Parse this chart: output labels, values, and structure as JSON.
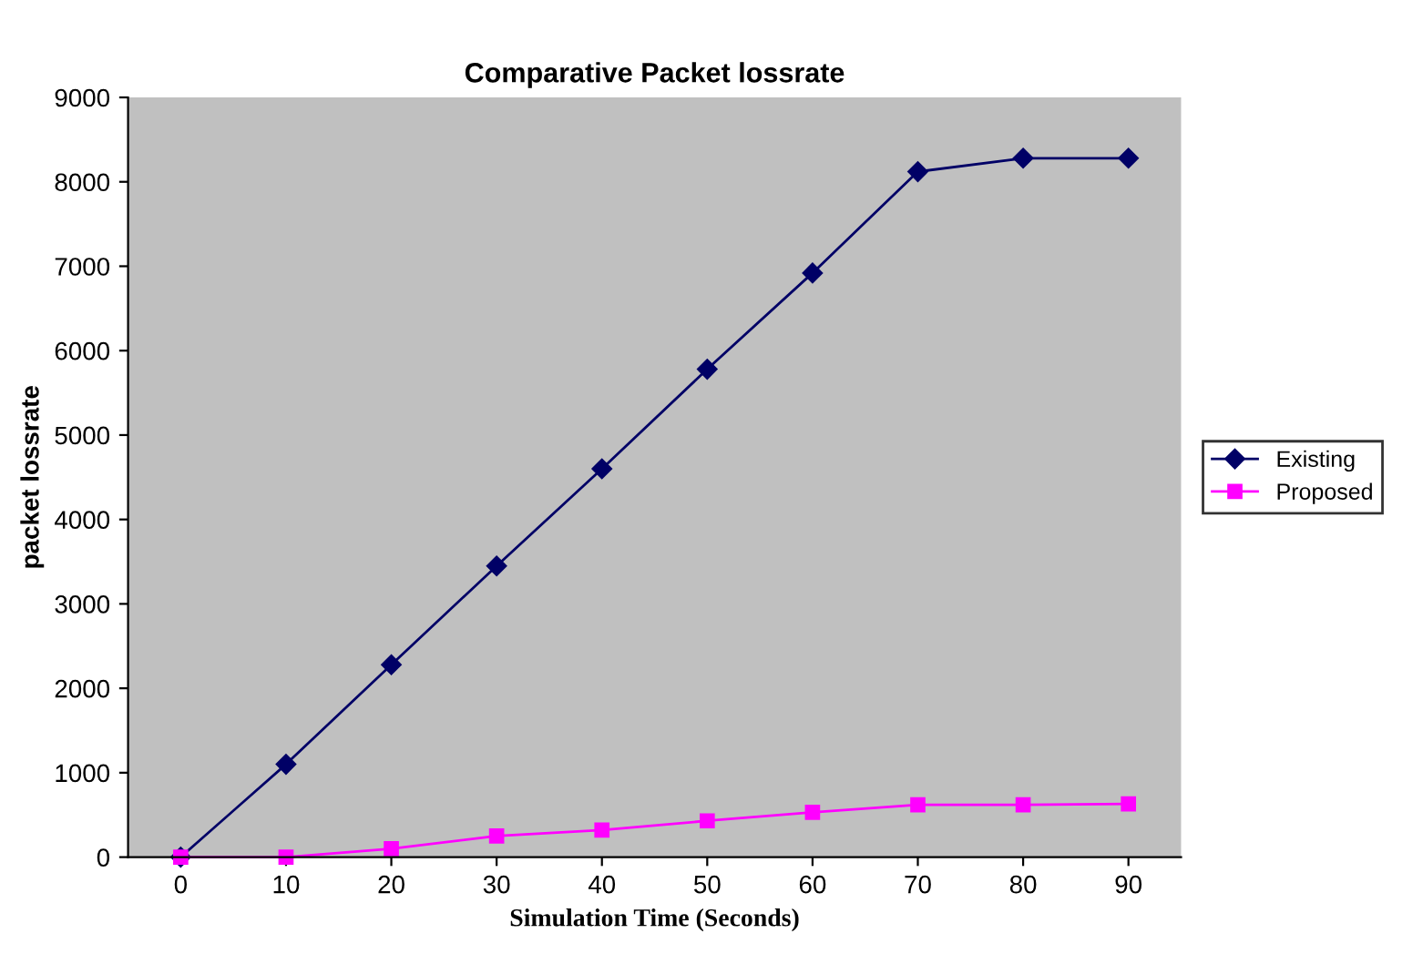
{
  "chart_data": {
    "type": "line",
    "title": "Comparative Packet lossrate",
    "xlabel": "Simulation Time (Seconds)",
    "ylabel": "packet lossrate",
    "categories": [
      "0",
      "10",
      "20",
      "30",
      "40",
      "50",
      "60",
      "70",
      "80",
      "90"
    ],
    "series": [
      {
        "name": "Existing",
        "color": "#000066",
        "marker": "diamond",
        "values": [
          0,
          1100,
          2280,
          3450,
          4600,
          5780,
          6920,
          8120,
          8280,
          8280
        ]
      },
      {
        "name": "Proposed",
        "color": "#ff00ff",
        "marker": "square",
        "values": [
          0,
          0,
          100,
          250,
          320,
          430,
          530,
          620,
          620,
          630
        ]
      }
    ],
    "ylim": [
      0,
      9000
    ],
    "yticks": [
      0,
      1000,
      2000,
      3000,
      4000,
      5000,
      6000,
      7000,
      8000,
      9000
    ],
    "grid": false,
    "legend": "right",
    "line_style": "solid"
  }
}
